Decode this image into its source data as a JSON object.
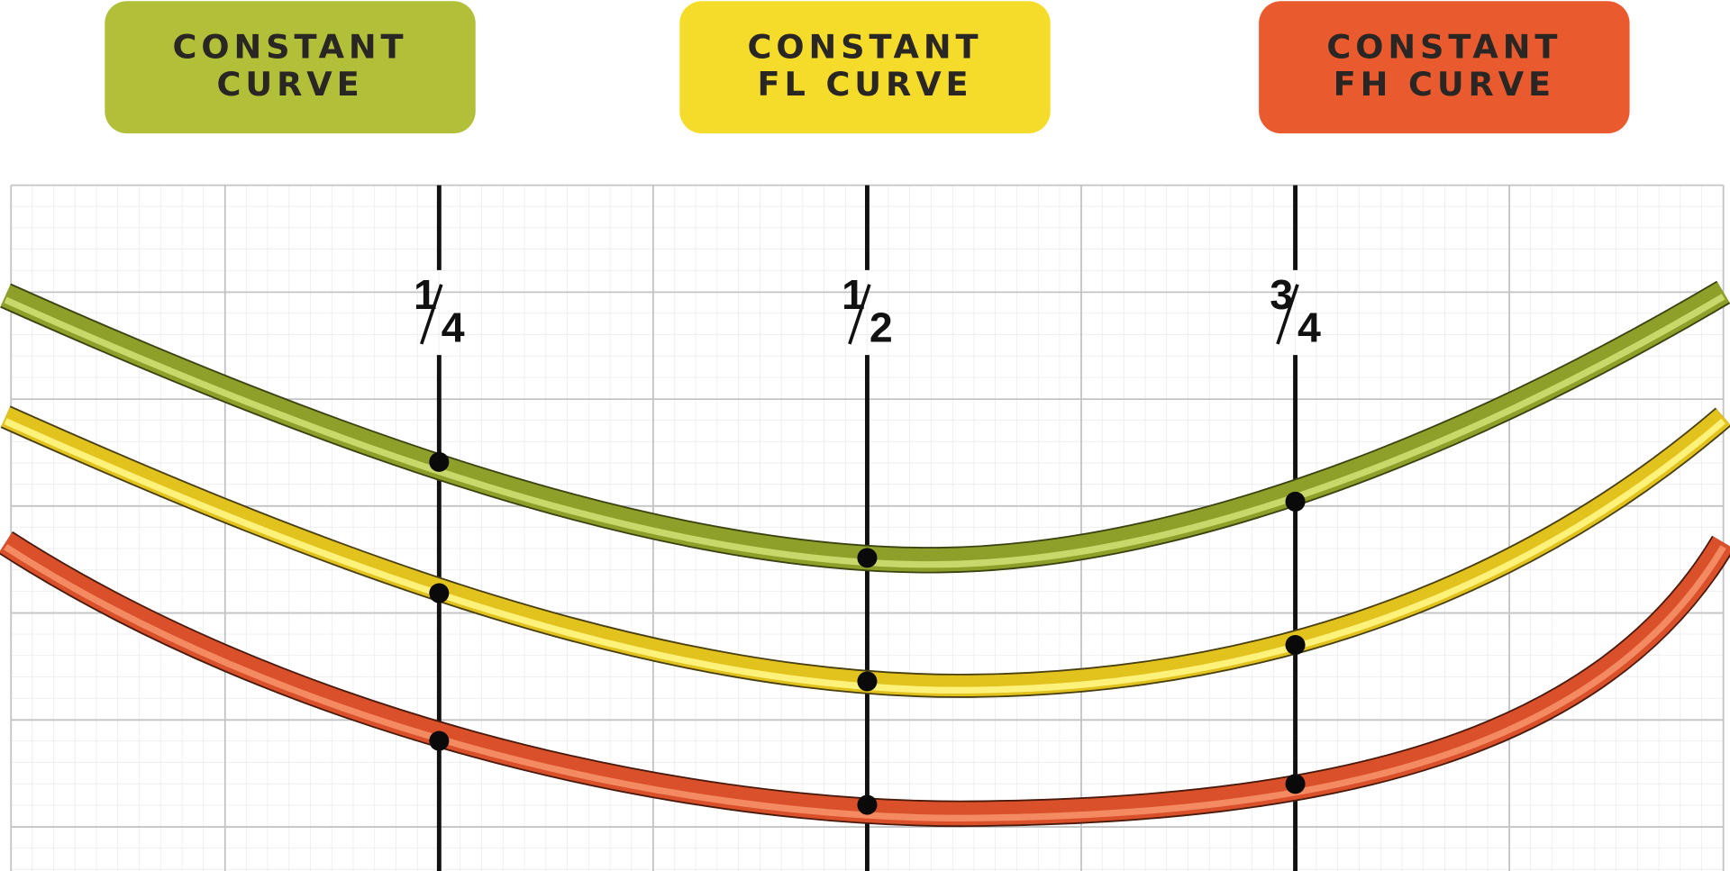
{
  "badges": [
    {
      "lines": [
        "CONSTANT",
        "CURVE"
      ]
    },
    {
      "lines": [
        "CONSTANT",
        "FL CURVE"
      ]
    },
    {
      "lines": [
        "CONSTANT",
        "FH CURVE"
      ]
    }
  ],
  "markers": [
    {
      "numerator": "1",
      "denominator": "4"
    },
    {
      "numerator": "1",
      "denominator": "2"
    },
    {
      "numerator": "3",
      "denominator": "4"
    }
  ]
}
